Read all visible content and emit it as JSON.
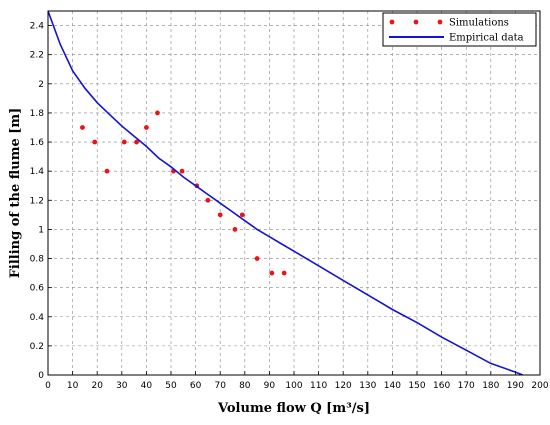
{
  "chart_data": {
    "type": "scatter",
    "title": "",
    "xlabel": "Volume flow Q [m³/s]",
    "ylabel": "Filling of the flume [m]",
    "xlim": [
      0,
      200
    ],
    "ylim": [
      0,
      2.5
    ],
    "x_ticks": [
      0,
      10,
      20,
      30,
      40,
      50,
      60,
      70,
      80,
      90,
      100,
      110,
      120,
      130,
      140,
      150,
      160,
      170,
      180,
      190,
      200
    ],
    "y_ticks": [
      0,
      0.2,
      0.4,
      0.6,
      0.8,
      1,
      1.2,
      1.4,
      1.6,
      1.8,
      2,
      2.2,
      2.4
    ],
    "grid": true,
    "legend_position": "top-right",
    "series": [
      {
        "name": "Simulations",
        "kind": "scatter",
        "color": "#e8141a",
        "points": [
          [
            14,
            1.7
          ],
          [
            19,
            1.6
          ],
          [
            24,
            1.4
          ],
          [
            31,
            1.6
          ],
          [
            36,
            1.6
          ],
          [
            40,
            1.7
          ],
          [
            44.5,
            1.8
          ],
          [
            51,
            1.4
          ],
          [
            54.5,
            1.4
          ],
          [
            60.5,
            1.3
          ],
          [
            65,
            1.2
          ],
          [
            70,
            1.1
          ],
          [
            76,
            1.0
          ],
          [
            79,
            1.1
          ],
          [
            85,
            0.8
          ],
          [
            91,
            0.7
          ],
          [
            96,
            0.7
          ]
        ]
      },
      {
        "name": "Empirical data",
        "kind": "line",
        "color": "#1414d6",
        "points": [
          [
            0,
            2.5
          ],
          [
            5,
            2.27
          ],
          [
            10,
            2.09
          ],
          [
            15,
            1.97
          ],
          [
            20,
            1.87
          ],
          [
            25,
            1.79
          ],
          [
            30,
            1.71
          ],
          [
            35,
            1.64
          ],
          [
            40,
            1.57
          ],
          [
            45,
            1.49
          ],
          [
            50,
            1.43
          ],
          [
            55,
            1.36
          ],
          [
            60,
            1.3
          ],
          [
            65,
            1.24
          ],
          [
            70,
            1.18
          ],
          [
            75,
            1.12
          ],
          [
            80,
            1.06
          ],
          [
            85,
            1.0
          ],
          [
            90,
            0.95
          ],
          [
            95,
            0.9
          ],
          [
            100,
            0.85
          ],
          [
            110,
            0.75
          ],
          [
            120,
            0.65
          ],
          [
            130,
            0.55
          ],
          [
            140,
            0.45
          ],
          [
            150,
            0.36
          ],
          [
            160,
            0.26
          ],
          [
            170,
            0.17
          ],
          [
            180,
            0.08
          ],
          [
            190,
            0.02
          ],
          [
            193,
            0.0
          ]
        ]
      }
    ]
  }
}
